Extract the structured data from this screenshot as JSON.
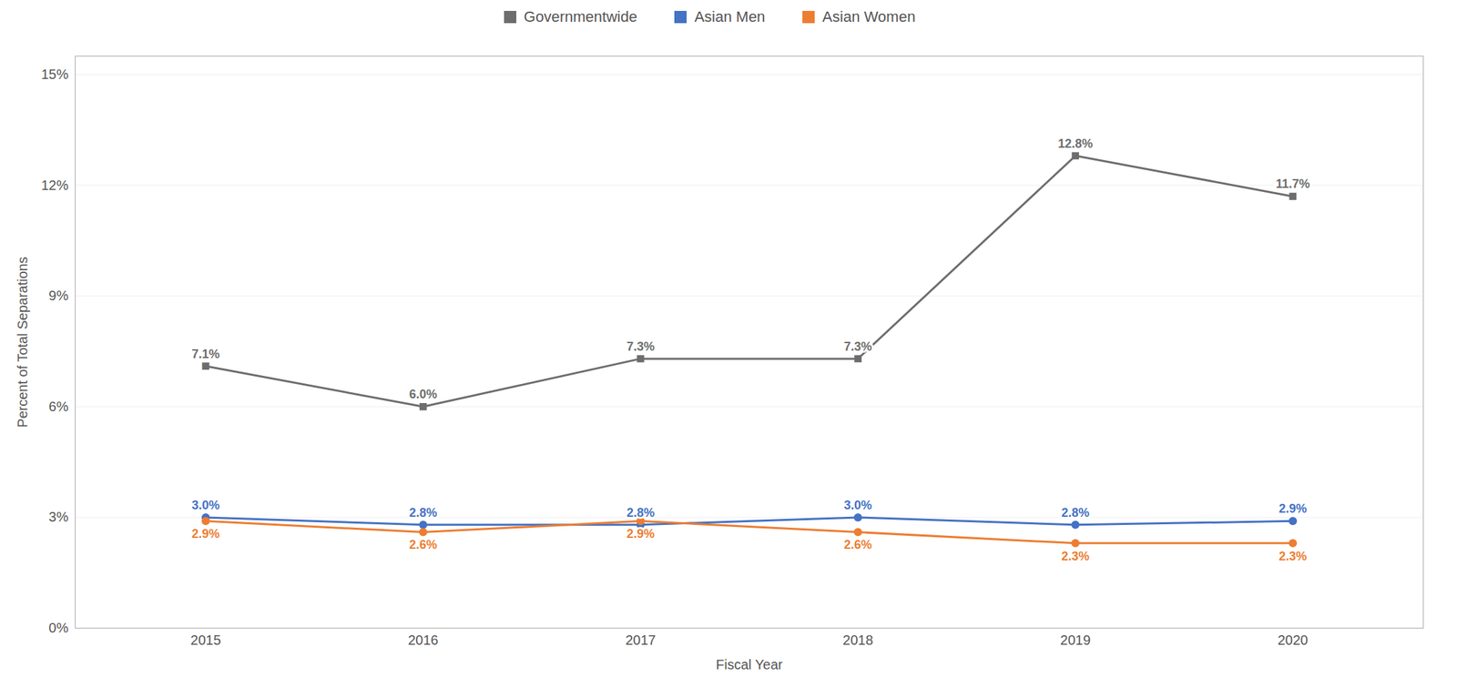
{
  "chart_data": {
    "type": "line",
    "x": [
      2015,
      2016,
      2017,
      2018,
      2019,
      2020
    ],
    "xlabel": "Fiscal Year",
    "ylabel": "Percent of Total Separations",
    "xlim": [
      2014.4,
      2020.6
    ],
    "xticks": [
      2015,
      2016,
      2017,
      2018,
      2019,
      2020
    ],
    "ylim": [
      0.0,
      0.155
    ],
    "yticks": [
      {
        "value": 0.0,
        "label": "0%"
      },
      {
        "value": 0.03,
        "label": "3%"
      },
      {
        "value": 0.06,
        "label": "6%"
      },
      {
        "value": 0.09,
        "label": "9%"
      },
      {
        "value": 0.12,
        "label": "12%"
      },
      {
        "value": 0.15,
        "label": "15%"
      }
    ],
    "grid": true,
    "legend": "top",
    "data_labels": true,
    "series": [
      {
        "name": "Governmentwide",
        "color": "#6D6D6D",
        "marker": "square",
        "values": [
          0.071,
          0.06,
          0.073,
          0.073,
          0.128,
          0.117
        ],
        "value_labels": [
          "7.1%",
          "6.0%",
          "7.3%",
          "7.3%",
          "12.8%",
          "11.7%"
        ]
      },
      {
        "name": "Asian Men",
        "color": "#4472C4",
        "marker": "circle",
        "values": [
          0.03,
          0.028,
          0.028,
          0.03,
          0.028,
          0.029
        ],
        "value_labels": [
          "3.0%",
          "2.8%",
          "2.8%",
          "3.0%",
          "2.8%",
          "2.9%"
        ]
      },
      {
        "name": "Asian Women",
        "color": "#ED7D31",
        "marker": "circle",
        "values": [
          0.029,
          0.026,
          0.029,
          0.026,
          0.023,
          0.023
        ],
        "value_labels": [
          "2.9%",
          "2.6%",
          "2.9%",
          "2.6%",
          "2.3%",
          "2.3%"
        ]
      }
    ]
  }
}
